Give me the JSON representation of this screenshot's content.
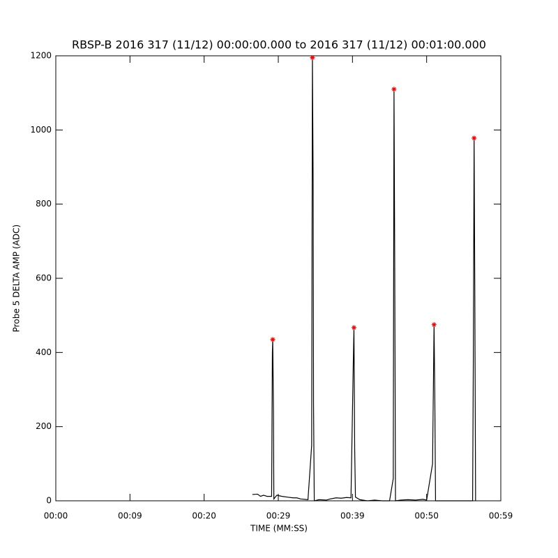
{
  "chart_data": {
    "type": "line",
    "title": "RBSP-B 2016 317 (11/12) 00:00:00.000 to 2016 317 (11/12) 00:01:00.000",
    "x_label": "TIME (MM:SS)",
    "y_label": "Probe 5 DELTA AMP (ADC)",
    "xlim": [
      0,
      60
    ],
    "ylim": [
      0,
      1200
    ],
    "xticks": [
      {
        "value": 0,
        "label": "00:00"
      },
      {
        "value": 10,
        "label": "00:09"
      },
      {
        "value": 20,
        "label": "00:20"
      },
      {
        "value": 30,
        "label": "00:29"
      },
      {
        "value": 40,
        "label": "00:39"
      },
      {
        "value": 50,
        "label": "00:50"
      },
      {
        "value": 60,
        "label": "00:59"
      }
    ],
    "yticks": [
      0,
      200,
      400,
      600,
      800,
      1000,
      1200
    ],
    "series": [
      {
        "color": "#000000",
        "x": [
          26.5,
          27.2,
          27.6,
          28.0,
          28.5,
          29.1,
          29.2,
          29.25,
          29.35,
          29.4,
          29.8,
          30.5,
          31.2,
          32.0,
          32.5,
          33.0,
          34.0,
          34.5,
          34.6,
          34.7,
          34.75,
          34.85,
          35.5,
          36.5,
          37.0,
          37.8,
          38.5,
          39.2,
          39.8,
          40.1,
          40.2,
          40.3,
          40.4,
          41.0,
          42.0,
          43.0,
          44.0,
          45.0,
          45.5,
          45.6,
          45.7,
          45.8,
          46.5,
          47.5,
          48.5,
          49.5,
          50.0,
          50.8,
          51.0,
          51.1,
          51.2,
          52.0,
          56.2,
          56.3,
          56.4,
          56.5,
          56.6
        ],
        "values": [
          17,
          18,
          12,
          15,
          12,
          12,
          400,
          435,
          240,
          5,
          15,
          12,
          10,
          8,
          8,
          5,
          3,
          150,
          1195,
          860,
          260,
          0,
          3,
          2,
          5,
          8,
          7,
          9,
          8,
          360,
          467,
          140,
          10,
          3,
          0,
          2,
          0,
          0,
          60,
          1110,
          640,
          0,
          2,
          3,
          2,
          4,
          2,
          100,
          475,
          290,
          0,
          0,
          0,
          400,
          978,
          545,
          0
        ]
      },
      {
        "color": "#ff0000",
        "marker": "asterisk",
        "x": [
          29.25,
          34.6,
          40.2,
          45.6,
          51.0,
          56.4
        ],
        "values": [
          435,
          1195,
          467,
          1110,
          475,
          978
        ]
      }
    ]
  }
}
